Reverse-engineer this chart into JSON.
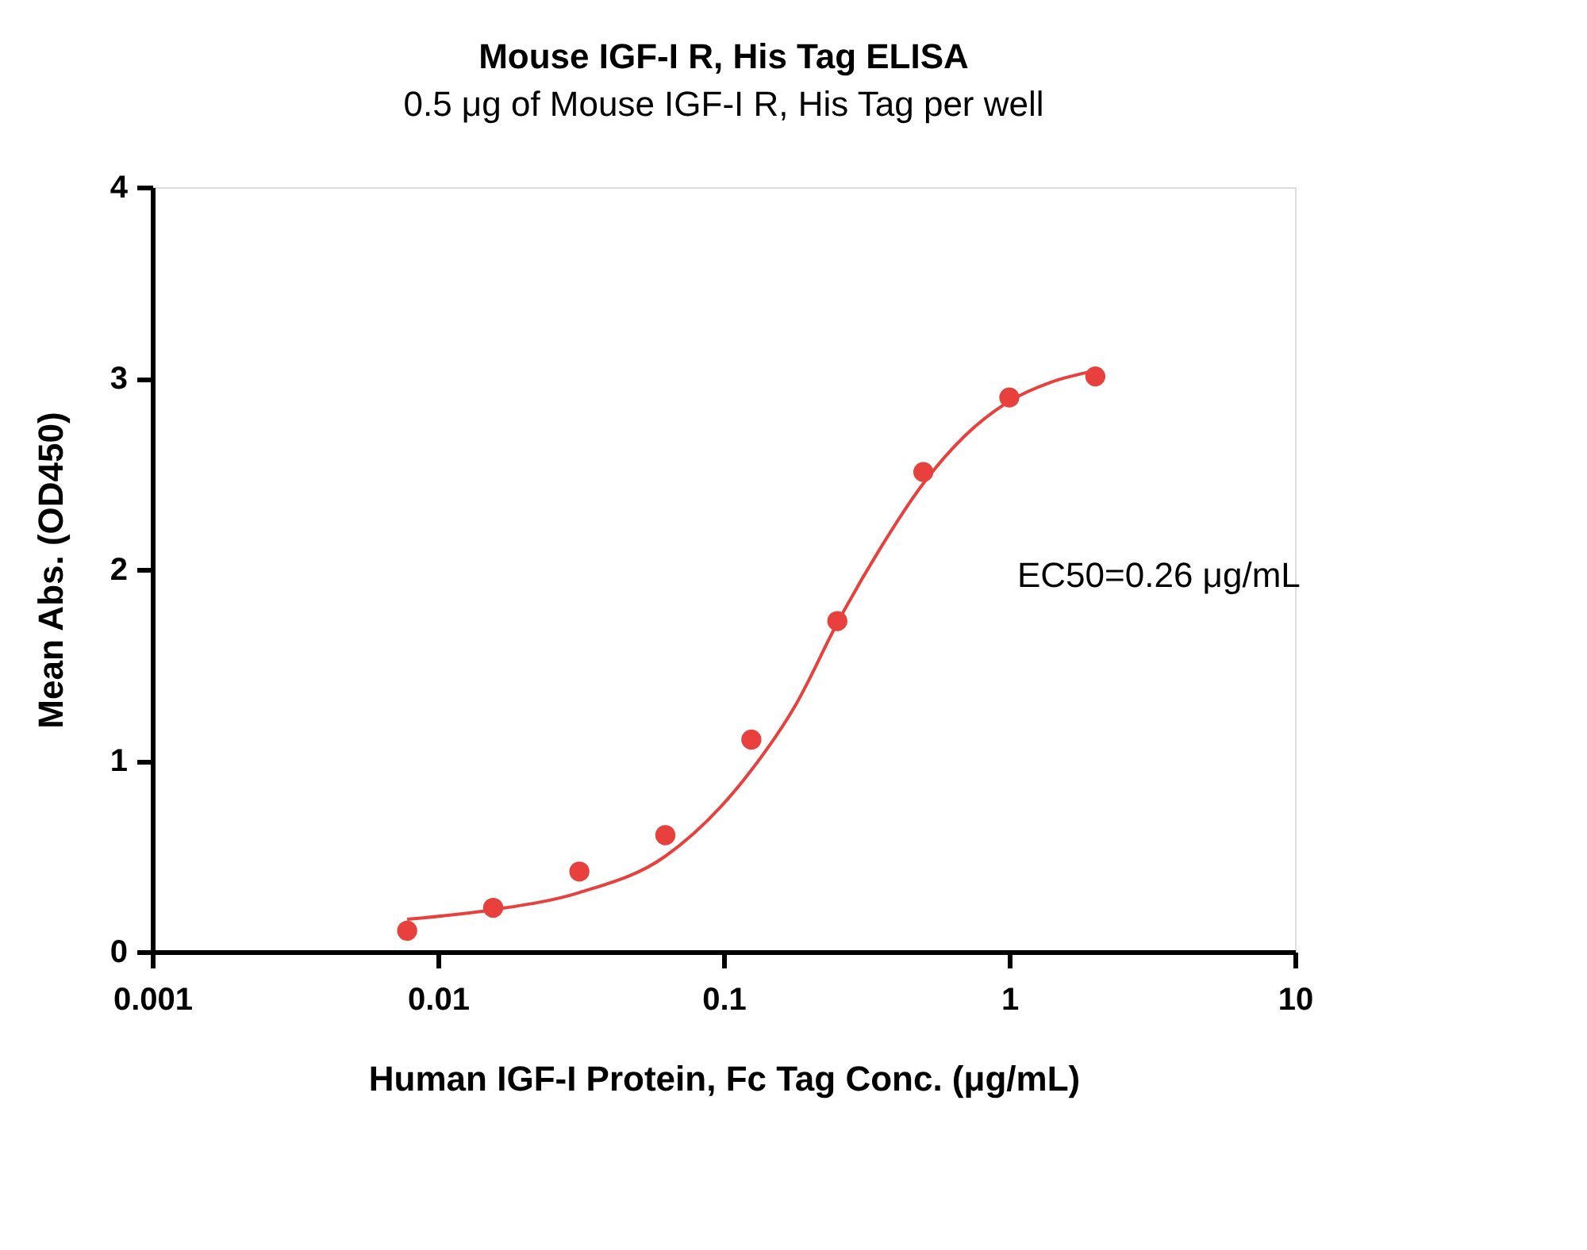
{
  "chart_data": {
    "type": "scatter",
    "title": "Mouse IGF-I R, His Tag ELISA",
    "subtitle": "0.5 μg of Mouse IGF-I R, His Tag per well",
    "xlabel": "Human IGF-I Protein, Fc Tag Conc. (μg/mL)",
    "ylabel": "Mean Abs. (OD450)",
    "log": "x",
    "xlim": [
      0.001,
      10
    ],
    "xticks": [
      0.001,
      0.01,
      0.1,
      1,
      10
    ],
    "ylim": [
      0,
      4
    ],
    "yticks": [
      0,
      1,
      2,
      3,
      4
    ],
    "grid": false,
    "series": [
      {
        "type": "line",
        "color": "#e8403c",
        "line_style": "solid",
        "marker": "none",
        "x": [
          0.0078,
          0.0156,
          0.03125,
          0.0625,
          0.125,
          0.18,
          0.25,
          0.35,
          0.5,
          0.7,
          1,
          1.4,
          2
        ],
        "values": [
          0.17,
          0.22,
          0.31,
          0.5,
          0.95,
          1.3,
          1.72,
          2.1,
          2.45,
          2.7,
          2.88,
          2.98,
          3.04
        ]
      },
      {
        "color": "#e8403c",
        "marker": "circle",
        "x": [
          0.0078,
          0.0156,
          0.03125,
          0.0625,
          0.125,
          0.25,
          0.5,
          1,
          2
        ],
        "values": [
          0.11,
          0.23,
          0.42,
          0.61,
          1.11,
          1.73,
          2.51,
          2.9,
          3.01
        ]
      }
    ],
    "annotations": [
      "EC50=0.26 μg/mL"
    ]
  }
}
